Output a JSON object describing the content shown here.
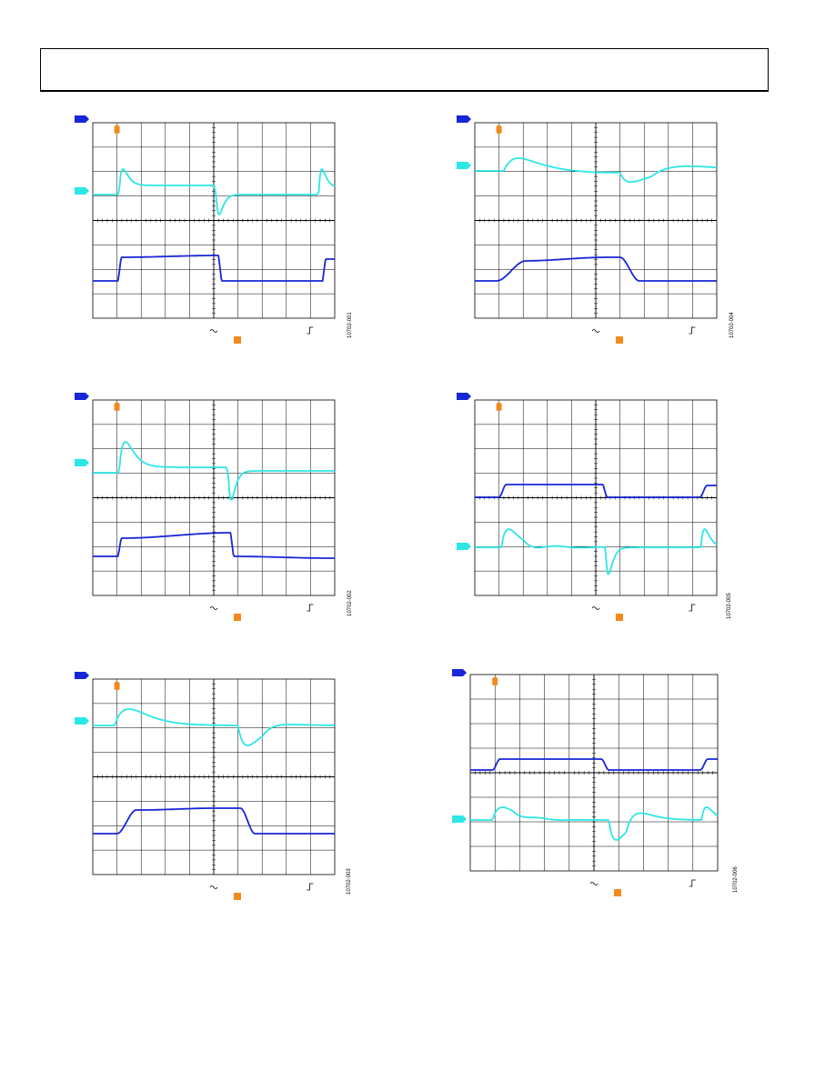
{
  "colors": {
    "ch1": "#1726d6",
    "ch2": "#2de6e6",
    "trigger": "#f28a1e",
    "grid": "#000000"
  },
  "icons": {
    "coupling": "ac-coupling-icon",
    "trigger_slope": "rising-edge-icon"
  },
  "figures": [
    {
      "id": "10702-001"
    },
    {
      "id": "10702-004"
    },
    {
      "id": "10702-002"
    },
    {
      "id": "10702-005"
    },
    {
      "id": "10702-003"
    },
    {
      "id": "10702-006"
    }
  ]
}
